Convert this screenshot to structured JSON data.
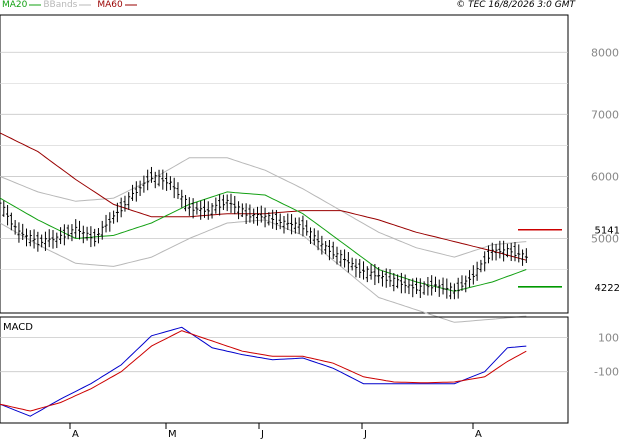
{
  "header": {
    "legend": [
      {
        "label": "MA20",
        "color": "#13a013"
      },
      {
        "label": "BBands",
        "color": "#b8b8b8"
      },
      {
        "label": "MA60",
        "color": "#990000"
      }
    ],
    "copyright": "© TEC 16/8/2026 3:0 GMT"
  },
  "chart_data": [
    {
      "type": "candlestick",
      "title": "",
      "y_tick_labels": [
        "8000",
        "7000",
        "6000",
        "5000"
      ],
      "y_ticks": [
        8000,
        7000,
        6000,
        5000
      ],
      "ylim": [
        3800,
        8600
      ],
      "grid": true,
      "x_tick_labels": [
        "A",
        "M",
        "J",
        "J",
        "A"
      ],
      "series": [
        {
          "name": "MA20",
          "color": "#13a013",
          "x": [
            0,
            10,
            20,
            30,
            40,
            50,
            60,
            70,
            80,
            90,
            100,
            110,
            120,
            130,
            139
          ],
          "values": [
            5650,
            5300,
            5000,
            5050,
            5250,
            5550,
            5750,
            5700,
            5400,
            4950,
            4500,
            4300,
            4150,
            4300,
            4500
          ]
        },
        {
          "name": "MA60",
          "color": "#990000",
          "x": [
            0,
            10,
            20,
            30,
            40,
            50,
            60,
            70,
            80,
            90,
            100,
            110,
            120,
            130,
            139
          ],
          "values": [
            6700,
            6400,
            5950,
            5550,
            5350,
            5350,
            5400,
            5400,
            5450,
            5450,
            5300,
            5100,
            4950,
            4800,
            4650
          ]
        },
        {
          "name": "BBands",
          "color": "#b8b8b8",
          "role": "upper",
          "x": [
            0,
            10,
            20,
            30,
            40,
            50,
            60,
            70,
            80,
            90,
            100,
            110,
            120,
            130,
            139
          ],
          "values": [
            6000,
            5750,
            5600,
            5650,
            5950,
            6300,
            6300,
            6100,
            5800,
            5450,
            5100,
            4850,
            4700,
            4900,
            4950
          ]
        },
        {
          "name": "BBands",
          "color": "#b8b8b8",
          "role": "lower",
          "x": [
            0,
            10,
            20,
            30,
            40,
            50,
            60,
            70,
            80,
            90,
            100,
            110,
            120,
            130,
            139
          ],
          "values": [
            5250,
            4900,
            4600,
            4550,
            4700,
            5000,
            5250,
            5300,
            5050,
            4550,
            4050,
            3850,
            3650,
            3700,
            3750
          ]
        },
        {
          "name": "price",
          "color": "#000000",
          "x": [
            0,
            5,
            10,
            15,
            20,
            25,
            30,
            35,
            40,
            45,
            50,
            55,
            60,
            65,
            70,
            75,
            80,
            85,
            90,
            95,
            100,
            105,
            110,
            115,
            120,
            125,
            130,
            135,
            139
          ],
          "values": [
            5550,
            5100,
            4950,
            5000,
            5150,
            5000,
            5350,
            5700,
            6000,
            5900,
            5500,
            5450,
            5600,
            5400,
            5350,
            5250,
            5200,
            4900,
            4700,
            4500,
            4400,
            4300,
            4200,
            4250,
            4150,
            4400,
            4800,
            4800,
            4700
          ]
        }
      ],
      "price_levels": [
        {
          "label": "5141",
          "value": 5141,
          "color": "#cc0000"
        },
        {
          "label": "4222",
          "value": 4222,
          "color": "#009900"
        }
      ]
    },
    {
      "type": "line",
      "title": "MACD",
      "y_tick_labels": [
        "100",
        "-100"
      ],
      "y_ticks": [
        100,
        -100
      ],
      "ylim": [
        -400,
        220
      ],
      "grid": true,
      "series": [
        {
          "name": "macd",
          "color": "#0000cc",
          "x": [
            0,
            8,
            16,
            24,
            32,
            40,
            48,
            56,
            64,
            72,
            80,
            88,
            96,
            104,
            112,
            120,
            128,
            134,
            139
          ],
          "values": [
            -290,
            -360,
            -260,
            -170,
            -60,
            110,
            160,
            40,
            0,
            -30,
            -20,
            -80,
            -170,
            -170,
            -170,
            -170,
            -100,
            40,
            50
          ]
        },
        {
          "name": "signal",
          "color": "#cc0000",
          "x": [
            0,
            8,
            16,
            24,
            32,
            40,
            48,
            56,
            64,
            72,
            80,
            88,
            96,
            104,
            112,
            120,
            128,
            134,
            139
          ],
          "values": [
            -290,
            -330,
            -280,
            -200,
            -100,
            50,
            140,
            80,
            20,
            -10,
            -10,
            -50,
            -130,
            -160,
            -165,
            -160,
            -130,
            -40,
            20
          ]
        }
      ]
    }
  ]
}
